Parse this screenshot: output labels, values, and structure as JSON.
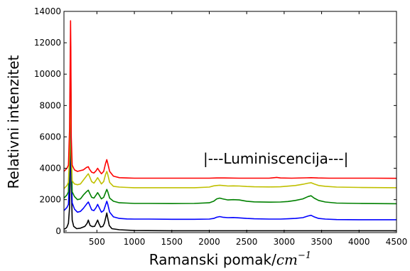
{
  "chart_data": {
    "type": "line",
    "xlabel": "Ramanski pomak/",
    "xlabel_unit": "cm",
    "xlabel_unit_exp": "−1",
    "ylabel": "Relativni intenzitet",
    "xlim": [
      60,
      4500
    ],
    "ylim": [
      -100,
      14000
    ],
    "x_ticks": [
      500,
      1000,
      1500,
      2000,
      2500,
      3000,
      3500,
      4000,
      4500
    ],
    "y_ticks": [
      0,
      2000,
      4000,
      6000,
      8000,
      10000,
      12000,
      14000
    ],
    "annotation": {
      "text": "|---Luminiscencija---|",
      "x": 1920,
      "y": 4300
    },
    "series": [
      {
        "color": "#000000",
        "points": [
          [
            60,
            120
          ],
          [
            80,
            150
          ],
          [
            100,
            250
          ],
          [
            120,
            500
          ],
          [
            135,
            1500
          ],
          [
            142,
            4000
          ],
          [
            148,
            10000
          ],
          [
            152,
            8000
          ],
          [
            158,
            3000
          ],
          [
            170,
            700
          ],
          [
            190,
            300
          ],
          [
            230,
            150
          ],
          [
            280,
            180
          ],
          [
            340,
            300
          ],
          [
            370,
            500
          ],
          [
            385,
            700
          ],
          [
            395,
            550
          ],
          [
            410,
            350
          ],
          [
            440,
            280
          ],
          [
            470,
            300
          ],
          [
            495,
            550
          ],
          [
            510,
            700
          ],
          [
            525,
            500
          ],
          [
            550,
            250
          ],
          [
            580,
            300
          ],
          [
            600,
            500
          ],
          [
            620,
            900
          ],
          [
            632,
            1150
          ],
          [
            645,
            800
          ],
          [
            665,
            350
          ],
          [
            700,
            150
          ],
          [
            800,
            80
          ],
          [
            1000,
            30
          ],
          [
            1500,
            20
          ],
          [
            2000,
            20
          ],
          [
            2500,
            20
          ],
          [
            3000,
            20
          ],
          [
            3500,
            20
          ],
          [
            4000,
            20
          ],
          [
            4500,
            20
          ]
        ]
      },
      {
        "color": "#0000ff",
        "points": [
          [
            60,
            1300
          ],
          [
            80,
            1400
          ],
          [
            100,
            1500
          ],
          [
            120,
            1700
          ],
          [
            135,
            3500
          ],
          [
            142,
            7000
          ],
          [
            148,
            10800
          ],
          [
            152,
            9000
          ],
          [
            158,
            4000
          ],
          [
            170,
            1800
          ],
          [
            200,
            1400
          ],
          [
            240,
            1200
          ],
          [
            280,
            1250
          ],
          [
            320,
            1450
          ],
          [
            360,
            1700
          ],
          [
            385,
            1850
          ],
          [
            400,
            1700
          ],
          [
            430,
            1350
          ],
          [
            460,
            1300
          ],
          [
            490,
            1500
          ],
          [
            510,
            1700
          ],
          [
            530,
            1500
          ],
          [
            560,
            1200
          ],
          [
            590,
            1300
          ],
          [
            615,
            1650
          ],
          [
            632,
            1900
          ],
          [
            645,
            1700
          ],
          [
            670,
            1200
          ],
          [
            720,
            900
          ],
          [
            800,
            800
          ],
          [
            900,
            770
          ],
          [
            1000,
            760
          ],
          [
            1200,
            760
          ],
          [
            1500,
            750
          ],
          [
            1800,
            750
          ],
          [
            2000,
            760
          ],
          [
            2060,
            800
          ],
          [
            2100,
            880
          ],
          [
            2140,
            920
          ],
          [
            2180,
            880
          ],
          [
            2250,
            850
          ],
          [
            2320,
            860
          ],
          [
            2400,
            840
          ],
          [
            2500,
            800
          ],
          [
            2600,
            780
          ],
          [
            2800,
            760
          ],
          [
            2950,
            760
          ],
          [
            3050,
            780
          ],
          [
            3150,
            800
          ],
          [
            3250,
            850
          ],
          [
            3320,
            960
          ],
          [
            3360,
            1000
          ],
          [
            3400,
            900
          ],
          [
            3460,
            800
          ],
          [
            3550,
            760
          ],
          [
            3700,
            730
          ],
          [
            4000,
            720
          ],
          [
            4200,
            720
          ],
          [
            4500,
            720
          ]
        ]
      },
      {
        "color": "#008000",
        "points": [
          [
            60,
            2100
          ],
          [
            80,
            2200
          ],
          [
            100,
            2300
          ],
          [
            120,
            2500
          ],
          [
            135,
            4500
          ],
          [
            142,
            8000
          ],
          [
            148,
            11800
          ],
          [
            152,
            10000
          ],
          [
            158,
            5000
          ],
          [
            170,
            2500
          ],
          [
            200,
            2200
          ],
          [
            240,
            2000
          ],
          [
            280,
            2050
          ],
          [
            320,
            2300
          ],
          [
            360,
            2500
          ],
          [
            385,
            2600
          ],
          [
            400,
            2450
          ],
          [
            430,
            2150
          ],
          [
            460,
            2100
          ],
          [
            490,
            2300
          ],
          [
            510,
            2450
          ],
          [
            530,
            2300
          ],
          [
            560,
            2050
          ],
          [
            590,
            2150
          ],
          [
            615,
            2450
          ],
          [
            632,
            2650
          ],
          [
            645,
            2500
          ],
          [
            670,
            2100
          ],
          [
            720,
            1900
          ],
          [
            800,
            1800
          ],
          [
            900,
            1780
          ],
          [
            1000,
            1760
          ],
          [
            1200,
            1760
          ],
          [
            1500,
            1750
          ],
          [
            1800,
            1760
          ],
          [
            2000,
            1800
          ],
          [
            2060,
            1900
          ],
          [
            2100,
            2050
          ],
          [
            2140,
            2100
          ],
          [
            2180,
            2050
          ],
          [
            2250,
            1980
          ],
          [
            2320,
            2000
          ],
          [
            2400,
            1980
          ],
          [
            2500,
            1900
          ],
          [
            2600,
            1860
          ],
          [
            2800,
            1840
          ],
          [
            2950,
            1850
          ],
          [
            3050,
            1880
          ],
          [
            3150,
            1950
          ],
          [
            3250,
            2050
          ],
          [
            3320,
            2200
          ],
          [
            3360,
            2250
          ],
          [
            3400,
            2100
          ],
          [
            3460,
            1950
          ],
          [
            3550,
            1850
          ],
          [
            3700,
            1780
          ],
          [
            4000,
            1760
          ],
          [
            4200,
            1750
          ],
          [
            4500,
            1740
          ]
        ]
      },
      {
        "color": "#c0c000",
        "points": [
          [
            60,
            2700
          ],
          [
            80,
            2800
          ],
          [
            100,
            2900
          ],
          [
            120,
            3100
          ],
          [
            135,
            4800
          ],
          [
            142,
            7500
          ],
          [
            148,
            11000
          ],
          [
            152,
            9500
          ],
          [
            158,
            5000
          ],
          [
            170,
            3200
          ],
          [
            200,
            3000
          ],
          [
            240,
            2950
          ],
          [
            280,
            3000
          ],
          [
            320,
            3250
          ],
          [
            360,
            3500
          ],
          [
            385,
            3650
          ],
          [
            400,
            3500
          ],
          [
            430,
            3150
          ],
          [
            460,
            3050
          ],
          [
            490,
            3250
          ],
          [
            510,
            3400
          ],
          [
            530,
            3250
          ],
          [
            560,
            3000
          ],
          [
            590,
            3150
          ],
          [
            615,
            3600
          ],
          [
            632,
            3800
          ],
          [
            645,
            3600
          ],
          [
            670,
            3100
          ],
          [
            720,
            2850
          ],
          [
            800,
            2800
          ],
          [
            900,
            2780
          ],
          [
            1000,
            2760
          ],
          [
            1200,
            2760
          ],
          [
            1500,
            2760
          ],
          [
            1800,
            2760
          ],
          [
            2000,
            2800
          ],
          [
            2060,
            2880
          ],
          [
            2100,
            2900
          ],
          [
            2140,
            2920
          ],
          [
            2180,
            2900
          ],
          [
            2250,
            2870
          ],
          [
            2320,
            2880
          ],
          [
            2400,
            2870
          ],
          [
            2500,
            2840
          ],
          [
            2600,
            2820
          ],
          [
            2800,
            2810
          ],
          [
            2950,
            2820
          ],
          [
            3050,
            2860
          ],
          [
            3150,
            2900
          ],
          [
            3250,
            2980
          ],
          [
            3320,
            3050
          ],
          [
            3360,
            3080
          ],
          [
            3400,
            3000
          ],
          [
            3460,
            2900
          ],
          [
            3550,
            2850
          ],
          [
            3700,
            2800
          ],
          [
            4000,
            2780
          ],
          [
            4200,
            2770
          ],
          [
            4500,
            2760
          ]
        ]
      },
      {
        "color": "#ff0000",
        "points": [
          [
            60,
            3800
          ],
          [
            80,
            3900
          ],
          [
            100,
            4000
          ],
          [
            120,
            4200
          ],
          [
            135,
            6500
          ],
          [
            142,
            10000
          ],
          [
            148,
            13400
          ],
          [
            152,
            11500
          ],
          [
            158,
            6000
          ],
          [
            170,
            4200
          ],
          [
            200,
            3900
          ],
          [
            240,
            3800
          ],
          [
            280,
            3850
          ],
          [
            320,
            3900
          ],
          [
            360,
            4050
          ],
          [
            385,
            4100
          ],
          [
            400,
            3950
          ],
          [
            430,
            3750
          ],
          [
            460,
            3700
          ],
          [
            490,
            3850
          ],
          [
            510,
            4000
          ],
          [
            530,
            3850
          ],
          [
            560,
            3650
          ],
          [
            590,
            3800
          ],
          [
            615,
            4300
          ],
          [
            632,
            4550
          ],
          [
            645,
            4300
          ],
          [
            670,
            3800
          ],
          [
            720,
            3500
          ],
          [
            800,
            3400
          ],
          [
            900,
            3380
          ],
          [
            1000,
            3370
          ],
          [
            1200,
            3370
          ],
          [
            1500,
            3370
          ],
          [
            1800,
            3370
          ],
          [
            2000,
            3370
          ],
          [
            2100,
            3380
          ],
          [
            2200,
            3380
          ],
          [
            2400,
            3370
          ],
          [
            2600,
            3370
          ],
          [
            2800,
            3370
          ],
          [
            2900,
            3420
          ],
          [
            2950,
            3380
          ],
          [
            3100,
            3370
          ],
          [
            3300,
            3390
          ],
          [
            3360,
            3400
          ],
          [
            3450,
            3380
          ],
          [
            3600,
            3370
          ],
          [
            4000,
            3370
          ],
          [
            4200,
            3370
          ],
          [
            4500,
            3360
          ]
        ]
      }
    ]
  }
}
